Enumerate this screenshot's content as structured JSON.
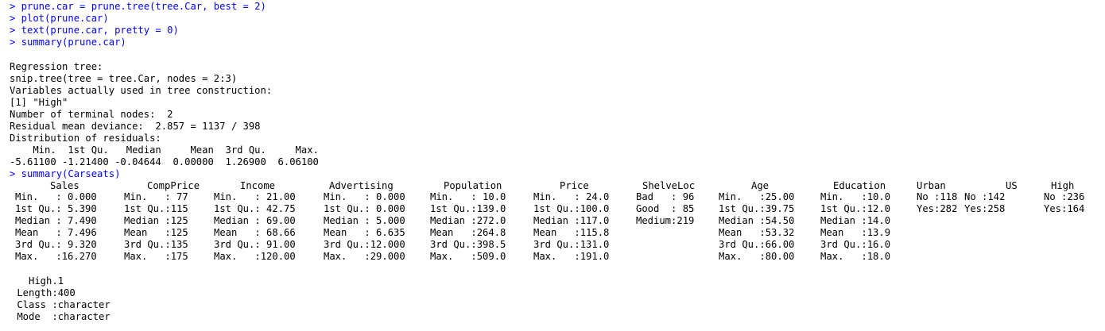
{
  "console": {
    "commands": [
      "> prune.car = prune.tree(tree.Car, best = 2)",
      "> plot(prune.car)",
      "> text(prune.car, pretty = 0)",
      "> summary(prune.car)"
    ],
    "output_lines": [
      "Regression tree:",
      "snip.tree(tree = tree.Car, nodes = 2:3)",
      "Variables actually used in tree construction:",
      "[1] \"High\"",
      "Number of terminal nodes:  2",
      "Residual mean deviance:  2.857 = 1137 / 398",
      "Distribution of residuals:",
      "    Min.  1st Qu.   Median     Mean  3rd Qu.     Max.",
      "-5.61100 -1.21400 -0.04644  0.00000  1.26900  6.06100"
    ],
    "summary_command": "> summary(Carseats)",
    "summary_table": {
      "headers": [
        "Sales",
        "CompPrice",
        "Income",
        "Advertising",
        "Population",
        "Price",
        "ShelveLoc",
        "Age",
        "Education",
        "Urban",
        "US",
        "High"
      ],
      "rows": [
        [
          "Min.   : 0.000",
          "Min.   : 77",
          "Min.   : 21.00",
          "Min.   : 0.000",
          "Min.   : 10.0",
          "Min.   : 24.0",
          "Bad   : 96",
          "Min.   :25.00",
          "Min.   :10.0",
          "No :118",
          "No :142",
          "No :236"
        ],
        [
          "1st Qu.: 5.390",
          "1st Qu.:115",
          "1st Qu.: 42.75",
          "1st Qu.: 0.000",
          "1st Qu.:139.0",
          "1st Qu.:100.0",
          "Good  : 85",
          "1st Qu.:39.75",
          "1st Qu.:12.0",
          "Yes:282",
          "Yes:258",
          "Yes:164"
        ],
        [
          "Median : 7.490",
          "Median :125",
          "Median : 69.00",
          "Median : 5.000",
          "Median :272.0",
          "Median :117.0",
          "Medium:219",
          "Median :54.50",
          "Median :14.0",
          "",
          "",
          ""
        ],
        [
          "Mean   : 7.496",
          "Mean   :125",
          "Mean   : 68.66",
          "Mean   : 6.635",
          "Mean   :264.8",
          "Mean   :115.8",
          "",
          "Mean   :53.32",
          "Mean   :13.9",
          "",
          "",
          ""
        ],
        [
          "3rd Qu.: 9.320",
          "3rd Qu.:135",
          "3rd Qu.: 91.00",
          "3rd Qu.:12.000",
          "3rd Qu.:398.5",
          "3rd Qu.:131.0",
          "",
          "3rd Qu.:66.00",
          "3rd Qu.:16.0",
          "",
          "",
          ""
        ],
        [
          "Max.   :16.270",
          "Max.   :175",
          "Max.   :120.00",
          "Max.   :29.000",
          "Max.   :509.0",
          "Max.   :191.0",
          "",
          "Max.   :80.00",
          "Max.   :18.0",
          "",
          "",
          ""
        ]
      ]
    },
    "high1_block": [
      "   High.1",
      " Length:400",
      " Class :character",
      " Mode  :character"
    ],
    "colors": {
      "command": "#0000ff",
      "output": "#000000",
      "background": "#ffffff"
    }
  }
}
